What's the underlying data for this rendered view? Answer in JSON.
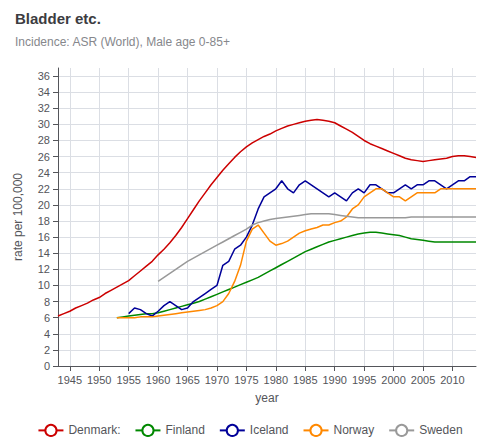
{
  "chart_data": {
    "type": "line",
    "title": "Bladder etc.",
    "subtitle": "Incidence: ASR (World), Male age 0-85+",
    "xlabel": "year",
    "ylabel": "rate per 100,000",
    "xlim": [
      1943,
      2014
    ],
    "ylim": [
      0,
      37
    ],
    "xticks": [
      1945,
      1950,
      1955,
      1960,
      1965,
      1970,
      1975,
      1980,
      1985,
      1990,
      1995,
      2000,
      2005,
      2010
    ],
    "yticks": [
      0,
      2,
      4,
      6,
      8,
      10,
      12,
      14,
      16,
      18,
      20,
      22,
      24,
      26,
      28,
      30,
      32,
      34,
      36
    ],
    "grid": true,
    "legend": "bottom",
    "series": [
      {
        "name": "Denmark:",
        "color": "#cc0000",
        "x": [
          1943,
          1944,
          1945,
          1946,
          1947,
          1948,
          1949,
          1950,
          1951,
          1952,
          1953,
          1954,
          1955,
          1956,
          1957,
          1958,
          1959,
          1960,
          1961,
          1962,
          1963,
          1964,
          1965,
          1966,
          1967,
          1968,
          1969,
          1970,
          1971,
          1972,
          1973,
          1974,
          1975,
          1976,
          1977,
          1978,
          1979,
          1980,
          1981,
          1982,
          1983,
          1984,
          1985,
          1986,
          1987,
          1988,
          1989,
          1990,
          1991,
          1992,
          1993,
          1994,
          1995,
          1996,
          1997,
          1998,
          1999,
          2000,
          2001,
          2002,
          2003,
          2004,
          2005,
          2006,
          2007,
          2008,
          2009,
          2010,
          2011,
          2012,
          2013,
          2014
        ],
        "values": [
          6.2,
          6.5,
          6.8,
          7.2,
          7.5,
          7.8,
          8.2,
          8.5,
          9.0,
          9.4,
          9.8,
          10.2,
          10.6,
          11.2,
          11.8,
          12.4,
          13.0,
          13.8,
          14.5,
          15.3,
          16.2,
          17.2,
          18.3,
          19.4,
          20.5,
          21.5,
          22.5,
          23.4,
          24.3,
          25.1,
          25.9,
          26.6,
          27.2,
          27.7,
          28.1,
          28.5,
          28.8,
          29.2,
          29.5,
          29.8,
          30.0,
          30.2,
          30.4,
          30.5,
          30.6,
          30.5,
          30.4,
          30.2,
          29.8,
          29.4,
          29.0,
          28.5,
          28.0,
          27.6,
          27.3,
          27.0,
          26.7,
          26.4,
          26.1,
          25.8,
          25.6,
          25.5,
          25.4,
          25.5,
          25.6,
          25.7,
          25.8,
          26.0,
          26.1,
          26.1,
          26.0,
          25.9
        ]
      },
      {
        "name": "Finland",
        "color": "#008800",
        "x": [
          1953,
          1954,
          1955,
          1956,
          1957,
          1958,
          1959,
          1960,
          1961,
          1962,
          1963,
          1964,
          1965,
          1966,
          1967,
          1968,
          1969,
          1970,
          1971,
          1972,
          1973,
          1974,
          1975,
          1976,
          1977,
          1978,
          1979,
          1980,
          1981,
          1982,
          1983,
          1984,
          1985,
          1986,
          1987,
          1988,
          1989,
          1990,
          1991,
          1992,
          1993,
          1994,
          1995,
          1996,
          1997,
          1998,
          1999,
          2000,
          2001,
          2002,
          2003,
          2004,
          2005,
          2006,
          2007,
          2008,
          2009,
          2010,
          2011,
          2012,
          2013,
          2014
        ],
        "values": [
          6.0,
          6.1,
          6.2,
          6.3,
          6.4,
          6.5,
          6.5,
          6.6,
          6.8,
          7.0,
          7.2,
          7.4,
          7.6,
          7.8,
          8.0,
          8.3,
          8.6,
          8.9,
          9.2,
          9.5,
          9.8,
          10.1,
          10.4,
          10.7,
          11.0,
          11.4,
          11.8,
          12.2,
          12.6,
          13.0,
          13.4,
          13.8,
          14.2,
          14.5,
          14.8,
          15.1,
          15.4,
          15.6,
          15.8,
          16.0,
          16.2,
          16.4,
          16.5,
          16.6,
          16.6,
          16.5,
          16.4,
          16.3,
          16.2,
          16.0,
          15.8,
          15.7,
          15.6,
          15.5,
          15.4,
          15.4,
          15.4,
          15.4,
          15.4,
          15.4,
          15.4,
          15.4
        ]
      },
      {
        "name": "Iceland",
        "color": "#000099",
        "x": [
          1955,
          1956,
          1957,
          1958,
          1959,
          1960,
          1961,
          1962,
          1963,
          1964,
          1965,
          1966,
          1967,
          1968,
          1969,
          1970,
          1971,
          1972,
          1973,
          1974,
          1975,
          1976,
          1977,
          1978,
          1979,
          1980,
          1981,
          1982,
          1983,
          1984,
          1985,
          1986,
          1987,
          1988,
          1989,
          1990,
          1991,
          1992,
          1993,
          1994,
          1995,
          1996,
          1997,
          1998,
          1999,
          2000,
          2001,
          2002,
          2003,
          2004,
          2005,
          2006,
          2007,
          2008,
          2009,
          2010,
          2011,
          2012,
          2013,
          2014
        ],
        "values": [
          6.5,
          7.2,
          7.0,
          6.5,
          6.2,
          6.8,
          7.5,
          8.0,
          7.5,
          7.0,
          7.2,
          8.0,
          8.5,
          9.0,
          9.5,
          10.0,
          12.5,
          13.0,
          14.5,
          15.0,
          16.0,
          17.5,
          19.5,
          21.0,
          21.5,
          22.0,
          23.0,
          22.0,
          21.5,
          22.5,
          23.0,
          22.5,
          22.0,
          21.5,
          21.0,
          21.5,
          21.0,
          20.5,
          21.5,
          22.0,
          21.5,
          22.5,
          22.5,
          22.0,
          21.5,
          21.5,
          22.0,
          22.5,
          22.0,
          22.5,
          22.5,
          23.0,
          23.0,
          22.5,
          22.0,
          22.5,
          23.0,
          23.0,
          23.5,
          23.5
        ]
      },
      {
        "name": "Norway",
        "color": "#ff8800",
        "x": [
          1953,
          1954,
          1955,
          1956,
          1957,
          1958,
          1959,
          1960,
          1961,
          1962,
          1963,
          1964,
          1965,
          1966,
          1967,
          1968,
          1969,
          1970,
          1971,
          1972,
          1973,
          1974,
          1975,
          1976,
          1977,
          1978,
          1979,
          1980,
          1981,
          1982,
          1983,
          1984,
          1985,
          1986,
          1987,
          1988,
          1989,
          1990,
          1991,
          1992,
          1993,
          1994,
          1995,
          1996,
          1997,
          1998,
          1999,
          2000,
          2001,
          2002,
          2003,
          2004,
          2005,
          2006,
          2007,
          2008,
          2009,
          2010,
          2011,
          2012,
          2013,
          2014
        ],
        "values": [
          6.0,
          6.0,
          6.0,
          6.0,
          6.1,
          6.1,
          6.1,
          6.2,
          6.3,
          6.4,
          6.5,
          6.6,
          6.7,
          6.8,
          6.9,
          7.0,
          7.2,
          7.5,
          8.0,
          9.0,
          10.5,
          12.5,
          15.5,
          17.0,
          17.5,
          16.5,
          15.5,
          15.0,
          15.2,
          15.5,
          16.0,
          16.5,
          16.8,
          17.0,
          17.2,
          17.5,
          17.5,
          17.8,
          18.0,
          18.5,
          19.5,
          20.0,
          21.0,
          21.5,
          22.0,
          22.0,
          21.5,
          21.0,
          21.0,
          20.5,
          21.0,
          21.5,
          21.5,
          21.5,
          21.5,
          22.0,
          22.0,
          22.0,
          22.0,
          22.0,
          22.0,
          22.0
        ]
      },
      {
        "name": "Sweden",
        "color": "#999999",
        "x": [
          1960,
          1961,
          1962,
          1963,
          1964,
          1965,
          1966,
          1967,
          1968,
          1969,
          1970,
          1971,
          1972,
          1973,
          1974,
          1975,
          1976,
          1977,
          1978,
          1979,
          1980,
          1981,
          1982,
          1983,
          1984,
          1985,
          1986,
          1987,
          1988,
          1989,
          1990,
          1991,
          1992,
          1993,
          1994,
          1995,
          1996,
          1997,
          1998,
          1999,
          2000,
          2001,
          2002,
          2003,
          2004,
          2005,
          2006,
          2007,
          2008,
          2009,
          2010,
          2011,
          2012,
          2013,
          2014
        ],
        "values": [
          10.5,
          11.0,
          11.5,
          12.0,
          12.5,
          13.0,
          13.4,
          13.8,
          14.2,
          14.6,
          15.0,
          15.4,
          15.8,
          16.2,
          16.6,
          17.0,
          17.5,
          17.8,
          18.0,
          18.2,
          18.3,
          18.4,
          18.5,
          18.6,
          18.7,
          18.8,
          18.9,
          18.9,
          18.9,
          18.9,
          18.8,
          18.7,
          18.6,
          18.5,
          18.4,
          18.4,
          18.4,
          18.4,
          18.4,
          18.4,
          18.4,
          18.4,
          18.4,
          18.5,
          18.5,
          18.5,
          18.5,
          18.5,
          18.5,
          18.5,
          18.5,
          18.5,
          18.5,
          18.5,
          18.5
        ]
      }
    ]
  }
}
